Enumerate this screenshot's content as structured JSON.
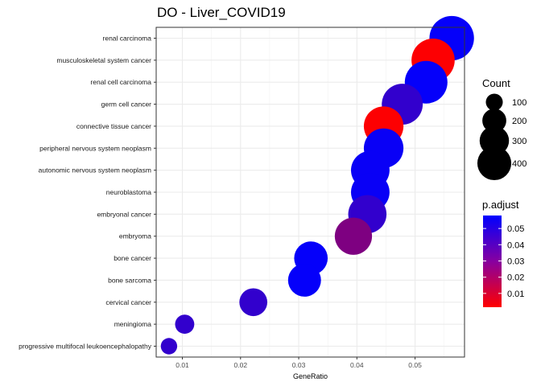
{
  "chart_data": {
    "type": "scatter",
    "title": "DO - Liver_COVID19",
    "xlabel": "GeneRatio",
    "ylabel": "",
    "xlim": [
      0.0055,
      0.0585
    ],
    "x_ticks": [
      0.01,
      0.02,
      0.03,
      0.04,
      0.05
    ],
    "x_tick_labels": [
      "0.01",
      "0.02",
      "0.03",
      "0.04",
      "0.05"
    ],
    "grid": true,
    "categories": [
      "renal carcinoma",
      "musculoskeletal system cancer",
      "renal cell carcinoma",
      "germ cell cancer",
      "connective tissue cancer",
      "peripheral nervous system neoplasm",
      "autonomic nervous system neoplasm",
      "neuroblastoma",
      "embryonal cancer",
      "embryoma",
      "bone cancer",
      "bone sarcoma",
      "cervical cancer",
      "meningioma",
      "progressive multifocal leukoencephalopathy"
    ],
    "points": [
      {
        "term": "renal carcinoma",
        "gene_ratio": 0.0563,
        "count": 420,
        "p_adjust": 0.057
      },
      {
        "term": "musculoskeletal system cancer",
        "gene_ratio": 0.0531,
        "count": 395,
        "p_adjust": 0.002
      },
      {
        "term": "renal cell carcinoma",
        "gene_ratio": 0.0519,
        "count": 385,
        "p_adjust": 0.057
      },
      {
        "term": "germ cell cancer",
        "gene_ratio": 0.0478,
        "count": 355,
        "p_adjust": 0.047
      },
      {
        "term": "connective tissue cancer",
        "gene_ratio": 0.0446,
        "count": 332,
        "p_adjust": 0.002
      },
      {
        "term": "peripheral nervous system neoplasm",
        "gene_ratio": 0.0446,
        "count": 332,
        "p_adjust": 0.056
      },
      {
        "term": "autonomic nervous system neoplasm",
        "gene_ratio": 0.0423,
        "count": 314,
        "p_adjust": 0.056
      },
      {
        "term": "neuroblastoma",
        "gene_ratio": 0.0423,
        "count": 314,
        "p_adjust": 0.056
      },
      {
        "term": "embryonal cancer",
        "gene_ratio": 0.0418,
        "count": 310,
        "p_adjust": 0.047
      },
      {
        "term": "embryoma",
        "gene_ratio": 0.0394,
        "count": 293,
        "p_adjust": 0.03
      },
      {
        "term": "bone cancer",
        "gene_ratio": 0.0321,
        "count": 238,
        "p_adjust": 0.057
      },
      {
        "term": "bone sarcoma",
        "gene_ratio": 0.031,
        "count": 230,
        "p_adjust": 0.057
      },
      {
        "term": "cervical cancer",
        "gene_ratio": 0.0222,
        "count": 165,
        "p_adjust": 0.047
      },
      {
        "term": "meningioma",
        "gene_ratio": 0.0104,
        "count": 78,
        "p_adjust": 0.047
      },
      {
        "term": "progressive multifocal leukoencephalopathy",
        "gene_ratio": 0.0077,
        "count": 57,
        "p_adjust": 0.047
      }
    ],
    "size_legend": {
      "title": "Count",
      "values": [
        100,
        200,
        300,
        400
      ],
      "labels": [
        "100",
        "200",
        "300",
        "400"
      ]
    },
    "color_legend": {
      "title": "p.adjust",
      "range": [
        0.0015,
        0.058
      ],
      "ticks": [
        0.05,
        0.04,
        0.03,
        0.02,
        0.01
      ],
      "tick_labels": [
        "0.05",
        "0.04",
        "0.03",
        "0.02",
        "0.01"
      ],
      "low_color": "#ff0000",
      "high_color": "#0000ff"
    },
    "legend_position": "right"
  }
}
